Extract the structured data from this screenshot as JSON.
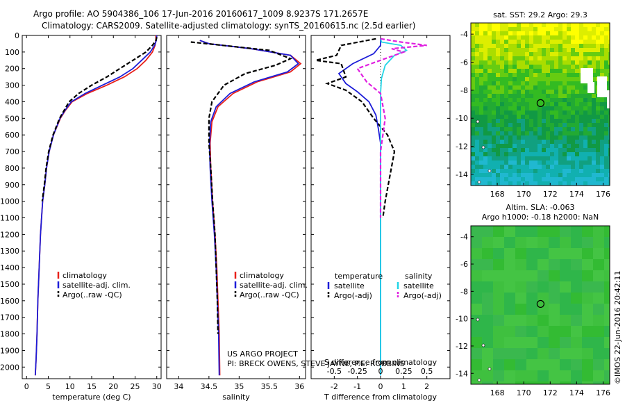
{
  "figure": {
    "title_line1": "Argo profile: AO 5904386_106 17-Jun-2016 20160617_1009 8.9237S 171.2657E",
    "title_line2": "Climatology: CARS2009. Satellite-adjusted climatology: synTS_20160615.nc (2.5d earlier)",
    "footer_line1": "US ARGO PROJECT",
    "footer_line2": "PI: BRECK OWENS, STEVE JAYNE, P.E. ROBBINS",
    "stamp": "©IMOS 22-Jun-2016 20:42:11"
  },
  "chart_data": [
    {
      "type": "line",
      "xlabel": "temperature (deg C)",
      "ylabel": "",
      "xlim": [
        -1,
        31
      ],
      "ylim": [
        2070,
        0
      ],
      "xticks": [
        0,
        5,
        10,
        15,
        20,
        25,
        30
      ],
      "yticks": [
        0,
        100,
        200,
        300,
        400,
        500,
        600,
        700,
        800,
        900,
        1000,
        1100,
        1200,
        1300,
        1400,
        1500,
        1600,
        1700,
        1800,
        1900,
        2000
      ],
      "legend": [
        "climatology",
        "satellite-adj. clim.",
        "Argo(..raw -QC)"
      ],
      "series": [
        {
          "name": "climatology",
          "color": "#e8201a",
          "style": "solid",
          "x": [
            29.8,
            29.8,
            29.6,
            29.0,
            27.5,
            25.5,
            22.5,
            18.5,
            14.0,
            10.5,
            9.0,
            7.8,
            6.2,
            5.2,
            4.6,
            4.2,
            3.7,
            3.2,
            2.9,
            2.6,
            2.4,
            2.2,
            2.1,
            2.0
          ],
          "y": [
            0,
            30,
            60,
            100,
            150,
            200,
            250,
            300,
            350,
            400,
            450,
            500,
            600,
            700,
            800,
            900,
            1000,
            1200,
            1400,
            1600,
            1800,
            1950,
            2000,
            2050
          ]
        },
        {
          "name": "satellite-adj. clim.",
          "color": "#1d1dd8",
          "style": "solid",
          "x": [
            30.0,
            29.9,
            29.5,
            28.5,
            26.5,
            24.5,
            21.5,
            17.5,
            13.5,
            10.3,
            8.9,
            7.7,
            6.2,
            5.2,
            4.6,
            4.2,
            3.7,
            3.2,
            2.9,
            2.6,
            2.4,
            2.2,
            2.1,
            2.0
          ],
          "y": [
            0,
            30,
            60,
            100,
            150,
            200,
            250,
            300,
            350,
            400,
            450,
            500,
            600,
            700,
            800,
            900,
            1000,
            1200,
            1400,
            1600,
            1800,
            1950,
            2000,
            2050
          ]
        },
        {
          "name": "Argo(..raw -QC)",
          "color": "#000000",
          "style": "dashed",
          "x": [
            30.0,
            29.8,
            29.0,
            27.5,
            24.5,
            21.5,
            18.5,
            15.0,
            12.0,
            9.8,
            8.7,
            7.6,
            6.1,
            5.1,
            4.5,
            4.1,
            3.6
          ],
          "y": [
            10,
            30,
            60,
            100,
            150,
            200,
            250,
            300,
            350,
            400,
            450,
            500,
            600,
            700,
            800,
            900,
            1000
          ]
        }
      ]
    },
    {
      "type": "line",
      "xlabel": "salinity",
      "ylabel": "",
      "xlim": [
        33.8,
        36.1
      ],
      "ylim": [
        2070,
        0
      ],
      "xticks": [
        34,
        34.5,
        35,
        35.5,
        36
      ],
      "legend": [
        "climatology",
        "satellite-adj. clim.",
        "Argo(..raw -QC)"
      ],
      "series": [
        {
          "name": "climatology",
          "color": "#e8201a",
          "style": "solid",
          "x": [
            34.35,
            34.5,
            35.2,
            35.85,
            36.02,
            35.85,
            35.3,
            34.9,
            34.65,
            34.55,
            34.52,
            34.53,
            34.56,
            34.6,
            34.63,
            34.65,
            34.67,
            34.68
          ],
          "y": [
            30,
            50,
            80,
            120,
            170,
            220,
            280,
            350,
            430,
            520,
            650,
            800,
            1000,
            1200,
            1400,
            1600,
            1800,
            2050
          ]
        },
        {
          "name": "satellite-adj. clim.",
          "color": "#1d1dd8",
          "style": "solid",
          "x": [
            34.35,
            34.5,
            35.2,
            35.85,
            35.98,
            35.8,
            35.25,
            34.85,
            34.62,
            34.53,
            34.51,
            34.52,
            34.55,
            34.59,
            34.62,
            34.64,
            34.66,
            34.67
          ],
          "y": [
            30,
            50,
            80,
            120,
            170,
            220,
            280,
            350,
            430,
            520,
            650,
            800,
            1000,
            1200,
            1400,
            1600,
            1800,
            2050
          ]
        },
        {
          "name": "Argo(..raw -QC)",
          "color": "#000000",
          "style": "dashed",
          "x": [
            34.2,
            34.6,
            35.5,
            35.85,
            35.6,
            35.1,
            34.75,
            34.55,
            34.5,
            34.5,
            34.53,
            34.56,
            34.6,
            34.62,
            34.64,
            34.65
          ],
          "y": [
            40,
            55,
            90,
            140,
            180,
            230,
            300,
            400,
            500,
            650,
            800,
            1000,
            1200,
            1400,
            1600,
            1800
          ]
        }
      ]
    },
    {
      "type": "line",
      "xlabel": "T difference from climatology",
      "x2label": "S difference from climatology",
      "xlim": [
        -3,
        3
      ],
      "ylim": [
        2070,
        0
      ],
      "xticks": [
        -2,
        -1,
        0,
        1,
        2
      ],
      "x2ticks": [
        -0.5,
        -0.25,
        0,
        0.25,
        0.5
      ],
      "x2tick_labels": [
        "-0.5",
        "-0.25",
        "0",
        "0.25",
        "0.5"
      ],
      "legend_headers": [
        "temperature",
        "salinity"
      ],
      "legend": [
        "satellite",
        "Argo(-adj)",
        "satellite",
        "Argo(-adj)"
      ],
      "series": [
        {
          "name": "satellite",
          "group": "temperature",
          "color": "#1d1dd8",
          "style": "solid",
          "x": [
            0,
            0,
            -0.3,
            -1.2,
            -1.8,
            -1.5,
            -1.0,
            -0.5,
            -0.2,
            -0.1,
            0,
            0,
            0,
            0,
            0,
            0,
            0
          ],
          "y": [
            20,
            60,
            110,
            170,
            230,
            290,
            340,
            400,
            480,
            560,
            650,
            800,
            1000,
            1200,
            1500,
            1800,
            2050
          ]
        },
        {
          "name": "Argo(-adj)",
          "group": "temperature",
          "color": "#000000",
          "style": "dashed",
          "x": [
            -0.2,
            -1.7,
            -1.9,
            -2.8,
            -1.7,
            -1.5,
            -2.3,
            -1.5,
            -0.8,
            -0.3,
            0.3,
            0.6,
            0.4,
            0.2,
            0.1
          ],
          "y": [
            20,
            60,
            120,
            150,
            170,
            250,
            290,
            330,
            400,
            500,
            600,
            700,
            850,
            1000,
            1100
          ]
        },
        {
          "name": "satellite",
          "group": "salinity",
          "color": "#22d5e6",
          "style": "solid",
          "x": [
            0,
            0.01,
            0.22,
            0.28,
            0.15,
            0.05,
            0.01,
            0,
            0,
            0,
            0,
            0
          ],
          "y": [
            20,
            40,
            60,
            90,
            120,
            180,
            260,
            350,
            500,
            800,
            1200,
            2050
          ]
        },
        {
          "name": "Argo(-adj)",
          "group": "salinity",
          "color": "#e020e0",
          "style": "dashed",
          "x": [
            0,
            0.22,
            0.5,
            0.12,
            0.25,
            0.1,
            -0.25,
            -0.15,
            0,
            0.05,
            0,
            0,
            0
          ],
          "y": [
            20,
            40,
            60,
            80,
            100,
            130,
            200,
            280,
            350,
            500,
            700,
            900,
            1100
          ]
        }
      ]
    },
    {
      "type": "heatmap",
      "title": "sat. SST: 29.2 Argo: 29.3",
      "xlim": [
        166,
        176.5
      ],
      "ylim": [
        -14.8,
        -3.2
      ],
      "xticks": [
        168,
        170,
        172,
        174,
        176
      ],
      "yticks": [
        -4,
        -6,
        -8,
        -10,
        -12,
        -14
      ],
      "marker": {
        "lon": 171.27,
        "lat": -8.92
      }
    },
    {
      "type": "heatmap",
      "title_line1": "Altim. SLA: -0.063",
      "title_line2": "Argo h1000: -0.18 h2000: NaN",
      "xlim": [
        166,
        176.5
      ],
      "ylim": [
        -14.8,
        -3.2
      ],
      "xticks": [
        168,
        170,
        172,
        174,
        176
      ],
      "yticks": [
        -4,
        -6,
        -8,
        -10,
        -12,
        -14
      ],
      "marker": {
        "lon": 171.27,
        "lat": -8.92
      }
    }
  ]
}
